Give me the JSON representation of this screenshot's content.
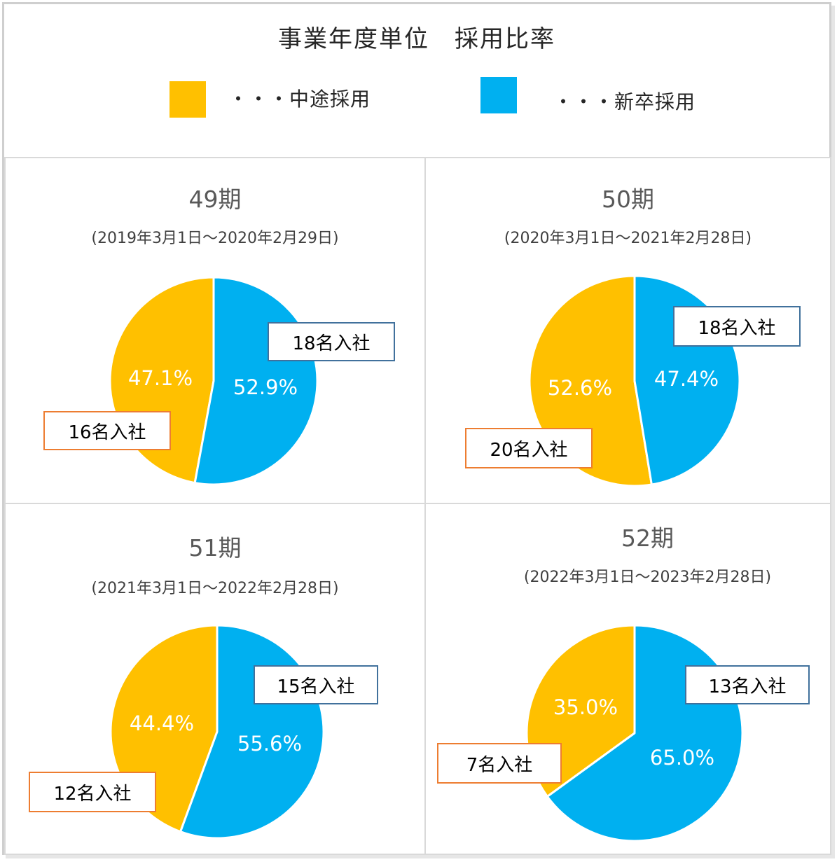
{
  "title": "事業年度単位　採用比率",
  "legend": [
    {
      "label": "・・・中途採用",
      "color": "#FFC000"
    },
    {
      "label": "・・・新卒採用",
      "color": "#00B0F0"
    }
  ],
  "colors": {
    "mid_career": "#FFC000",
    "new_grad": "#00B0F0"
  },
  "panels": [
    {
      "period": "49期",
      "range": "(2019年3月1日～2020年2月29日)",
      "mid_career_count_label": "16名入社",
      "new_grad_count_label": "18名入社",
      "mid_career_pct_label": "47.1%",
      "new_grad_pct_label": "52.9%"
    },
    {
      "period": "50期",
      "range": "(2020年3月1日～2021年2月28日)",
      "mid_career_count_label": "20名入社",
      "new_grad_count_label": "18名入社",
      "mid_career_pct_label": "52.6%",
      "new_grad_pct_label": "47.4%"
    },
    {
      "period": "51期",
      "range": "(2021年3月1日～2022年2月28日)",
      "mid_career_count_label": "12名入社",
      "new_grad_count_label": "15名入社",
      "mid_career_pct_label": "44.4%",
      "new_grad_pct_label": "55.6%"
    },
    {
      "period": "52期",
      "range": "(2022年3月1日～2023年2月28日)",
      "mid_career_count_label": "7名入社",
      "new_grad_count_label": "13名入社",
      "mid_career_pct_label": "35.0%",
      "new_grad_pct_label": "65.0%"
    }
  ],
  "chart_data": [
    {
      "type": "pie",
      "title": "49期",
      "categories": [
        "中途採用",
        "新卒採用"
      ],
      "values": [
        47.1,
        52.9
      ],
      "counts": [
        16,
        18
      ],
      "colors": [
        "#FFC000",
        "#00B0F0"
      ]
    },
    {
      "type": "pie",
      "title": "50期",
      "categories": [
        "中途採用",
        "新卒採用"
      ],
      "values": [
        52.6,
        47.4
      ],
      "counts": [
        20,
        18
      ],
      "colors": [
        "#FFC000",
        "#00B0F0"
      ]
    },
    {
      "type": "pie",
      "title": "51期",
      "categories": [
        "中途採用",
        "新卒採用"
      ],
      "values": [
        44.4,
        55.6
      ],
      "counts": [
        12,
        15
      ],
      "colors": [
        "#FFC000",
        "#00B0F0"
      ]
    },
    {
      "type": "pie",
      "title": "52期",
      "categories": [
        "中途採用",
        "新卒採用"
      ],
      "values": [
        35.0,
        65.0
      ],
      "counts": [
        7,
        13
      ],
      "colors": [
        "#FFC000",
        "#00B0F0"
      ]
    }
  ]
}
